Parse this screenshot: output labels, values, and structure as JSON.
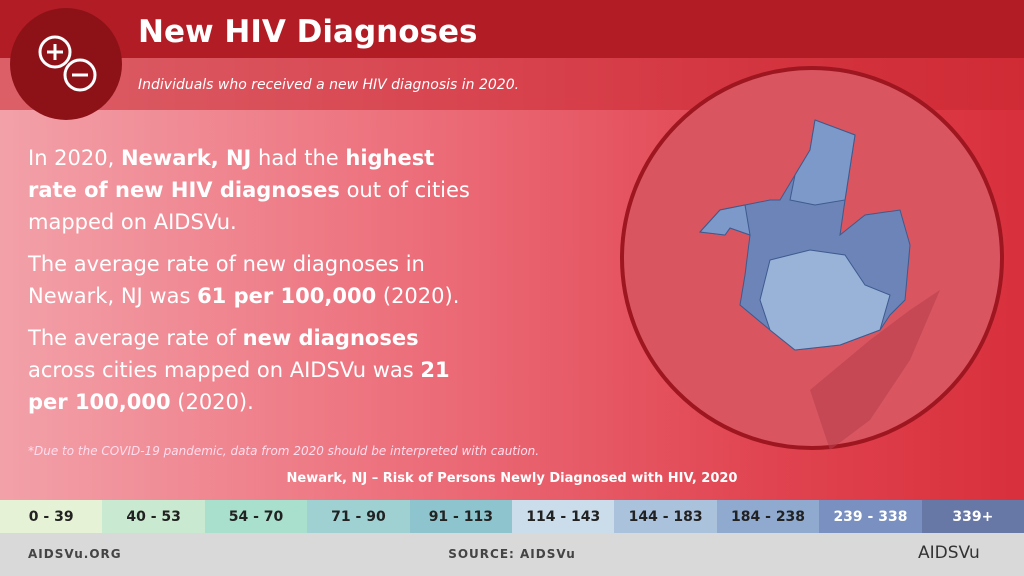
{
  "header": {
    "title": "New HIV Diagnoses",
    "subtitle": "Individuals who received a new HIV diagnosis in 2020."
  },
  "paragraphs": [
    [
      {
        "text": "In 2020, ",
        "bold": false
      },
      {
        "text": "Newark, NJ",
        "bold": true
      },
      {
        "text": " had the ",
        "bold": false
      },
      {
        "text": "highest rate of new HIV diagnoses",
        "bold": true
      },
      {
        "text": " out of cities mapped on AIDSVu.",
        "bold": false
      }
    ],
    [
      {
        "text": "The average rate of new diagnoses in Newark, NJ was ",
        "bold": false
      },
      {
        "text": "61 per 100,000",
        "bold": true
      },
      {
        "text": " (2020).",
        "bold": false
      }
    ],
    [
      {
        "text": "The average rate of ",
        "bold": false
      },
      {
        "text": "new diagnoses",
        "bold": true
      },
      {
        "text": " across cities mapped on AIDSVu was ",
        "bold": false
      },
      {
        "text": "21 per 100,000",
        "bold": true
      },
      {
        "text": " (2020).",
        "bold": false
      }
    ]
  ],
  "footnote": "*Due to the COVID-19 pandemic, data from 2020 should be interpreted with caution.",
  "legend": {
    "title": "Newark, NJ – Risk of Persons Newly Diagnosed with HIV, 2020",
    "bins": [
      {
        "label": "0 - 39",
        "color": "#e6f2d6"
      },
      {
        "label": "40 - 53",
        "color": "#c9ead0"
      },
      {
        "label": "54 - 70",
        "color": "#a9dfcd"
      },
      {
        "label": "71 - 90",
        "color": "#9fd0d2"
      },
      {
        "label": "91 - 113",
        "color": "#8ec4ce"
      },
      {
        "label": "114 - 143",
        "color": "#cbdcea"
      },
      {
        "label": "144 - 183",
        "color": "#abc2dd"
      },
      {
        "label": "184 - 238",
        "color": "#8fa9cf"
      },
      {
        "label": "239 - 338",
        "color": "#7990c0"
      },
      {
        "label": "339+",
        "color": "#6878a6"
      }
    ]
  },
  "footer": {
    "left": "AIDSVu.ORG",
    "center": "SOURCE: AIDSVu",
    "logo": "AIDSVu"
  }
}
